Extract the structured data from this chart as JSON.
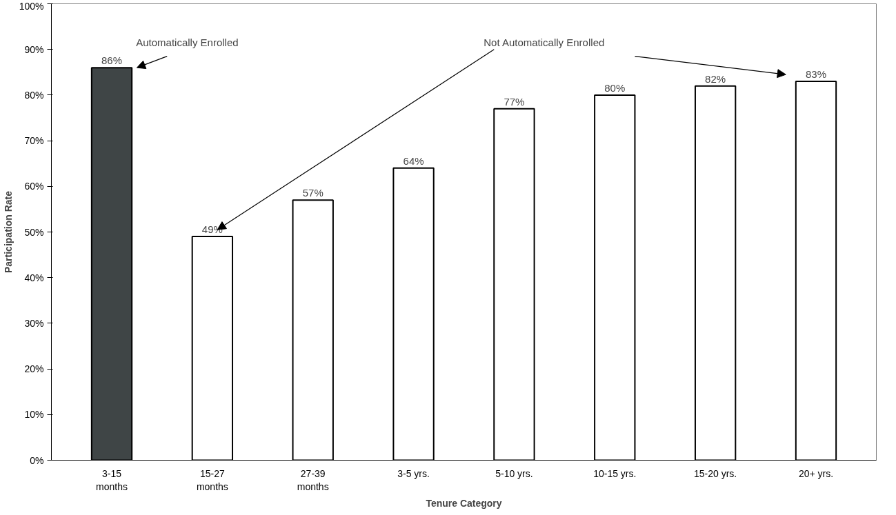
{
  "chart_data": {
    "type": "bar",
    "xlabel": "Tenure Category",
    "ylabel": "Participation Rate",
    "categories": [
      "3-15 months",
      "15-27 months",
      "27-39 months",
      "3-5 yrs.",
      "5-10 yrs.",
      "10-15 yrs.",
      "15-20 yrs.",
      "20+ yrs."
    ],
    "values": [
      86,
      49,
      57,
      64,
      77,
      80,
      82,
      83
    ],
    "value_labels": [
      "86%",
      "49%",
      "57%",
      "64%",
      "77%",
      "80%",
      "82%",
      "83%"
    ],
    "colors": [
      "#3f4546",
      "#ffffff",
      "#ffffff",
      "#ffffff",
      "#ffffff",
      "#ffffff",
      "#ffffff",
      "#ffffff"
    ],
    "ylim": [
      0,
      100
    ],
    "yticks": [
      {
        "value": 0,
        "label": "0%"
      },
      {
        "value": 10,
        "label": "10%"
      },
      {
        "value": 20,
        "label": "20%"
      },
      {
        "value": 30,
        "label": "30%"
      },
      {
        "value": 40,
        "label": "40%"
      },
      {
        "value": 50,
        "label": "50%"
      },
      {
        "value": 60,
        "label": "60%"
      },
      {
        "value": 70,
        "label": "70%"
      },
      {
        "value": 80,
        "label": "80%"
      },
      {
        "value": 90,
        "label": "90%"
      },
      {
        "value": 100,
        "label": "100%"
      }
    ],
    "grid": false,
    "annotations": [
      {
        "text": "Automatically Enrolled",
        "x": "3-15 months",
        "y": 86
      },
      "Not Automatically Enrolled"
    ]
  }
}
